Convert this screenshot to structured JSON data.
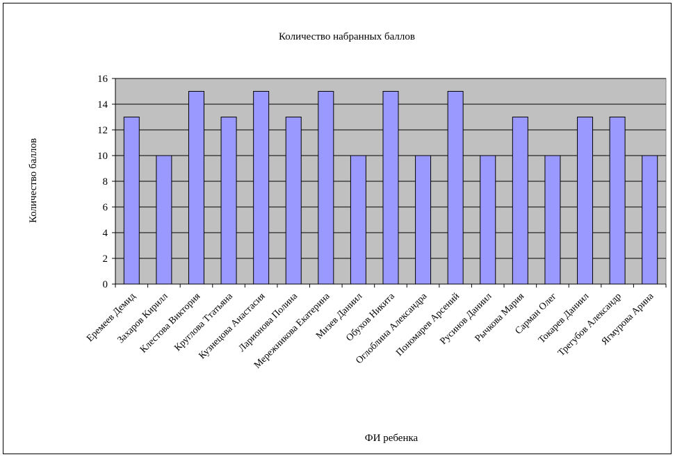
{
  "chart_data": {
    "type": "bar",
    "title": "Количество набранных баллов",
    "xlabel": "ФИ ребенка",
    "ylabel": "Количество баллов",
    "ylim": [
      0,
      16
    ],
    "yticks": [
      0,
      2,
      4,
      6,
      8,
      10,
      12,
      14,
      16
    ],
    "grid": true,
    "legend": "none",
    "categories": [
      "Еремеев Демид",
      "Захаров Кирилл",
      "Клестова Виктория",
      "Круглова Ттатьяна",
      "Кузнецова Анастасия",
      "Ларионова Полина",
      "Мережникова Екатерина",
      "Мизев Даниил",
      "Обухов Никита",
      "Оглоблина Александра",
      "Пономарев Арсений",
      "Русинов Даниил",
      "Рычкова Мария",
      "Сарман Олег",
      "Токарев Даниил",
      "Трегубов Александр",
      "Ягмурова Арина"
    ],
    "values": [
      13,
      10,
      15,
      13,
      15,
      13,
      15,
      10,
      15,
      10,
      15,
      10,
      13,
      10,
      13,
      13,
      10
    ],
    "colors": {
      "bar_fill": "#9999ff",
      "bar_stroke": "#000000",
      "plot_bg": "#c0c0c0",
      "grid": "#000000"
    }
  }
}
